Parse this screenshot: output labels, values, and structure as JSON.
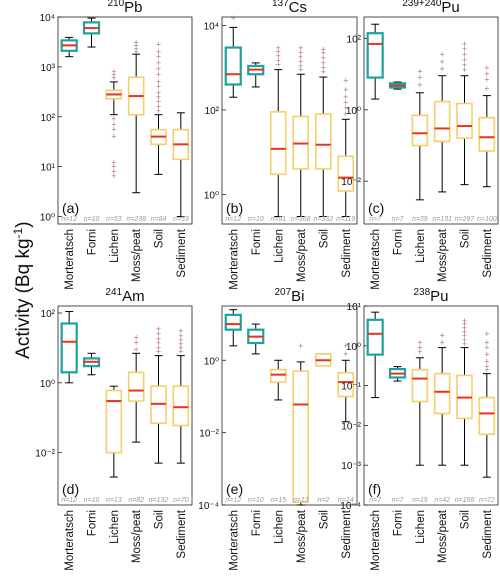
{
  "figure": {
    "ylabel": "Activity (Bq kg",
    "ylabel_sup": "-1",
    "ylabel_tail": ")"
  },
  "colors": {
    "teal": "#1aa3a0",
    "yellow": "#f5cf6a",
    "median": "#e8341c",
    "outlier": "#b07a78",
    "whisker": "#000000",
    "n_text": "#9a9a9a"
  },
  "chart_data": [
    {
      "type": "box",
      "scale": "log",
      "title_sup": "210",
      "title": "Pb",
      "panel": "(a)",
      "ylim_exp": [
        -0.15,
        4
      ],
      "ticks_exp": [
        0,
        1,
        2,
        3,
        4
      ],
      "categories": [
        "Morteratsch",
        "Forni",
        "Lichen",
        "Moss/peat",
        "Soil",
        "Sediment"
      ],
      "n": [
        "n=12",
        "n=10",
        "n=53",
        "n=238",
        "n=84",
        "n=53"
      ],
      "boxes": [
        {
          "q1": 2100,
          "median": 2700,
          "q3": 3400,
          "lo": 1600,
          "hi": 3900,
          "color": "teal",
          "outliers": []
        },
        {
          "q1": 4700,
          "median": 6000,
          "q3": 7800,
          "lo": 2500,
          "hi": 9500,
          "color": "teal",
          "outliers": []
        },
        {
          "q1": 230,
          "median": 280,
          "q3": 340,
          "lo": 110,
          "hi": 500,
          "color": "yellow",
          "outliers": [
            90,
            70,
            55,
            40,
            12,
            10,
            8,
            6.5,
            600,
            700,
            800
          ]
        },
        {
          "q1": 110,
          "median": 260,
          "q3": 620,
          "lo": 3,
          "hi": 1800,
          "color": "yellow",
          "outliers": [
            2000,
            2300,
            2700,
            3100
          ]
        },
        {
          "q1": 28,
          "median": 40,
          "q3": 55,
          "lo": 7,
          "hi": 110,
          "color": "yellow",
          "outliers": [
            130,
            160,
            200,
            250,
            300,
            400,
            500,
            700,
            900,
            1200,
            1600,
            2000,
            2800
          ]
        },
        {
          "q1": 14,
          "median": 28,
          "q3": 55,
          "lo": 1,
          "hi": 120,
          "color": "yellow",
          "outliers": []
        }
      ]
    },
    {
      "type": "box",
      "scale": "log",
      "title_sup": "137",
      "title": "Cs",
      "panel": "(b)",
      "ylim_exp": [
        -0.7,
        4.2
      ],
      "ticks_exp": [
        0,
        2,
        4
      ],
      "categories": [
        "Morteratsch",
        "Forni",
        "Lichen",
        "Moss/peat",
        "Soil",
        "Sediment"
      ],
      "n": [
        "n=12",
        "n=10",
        "n=91",
        "n=168",
        "n=332",
        "n=119"
      ],
      "boxes": [
        {
          "q1": 400,
          "median": 700,
          "q3": 3000,
          "lo": 200,
          "hi": 9000,
          "color": "teal",
          "outliers": [
            15000
          ]
        },
        {
          "q1": 700,
          "median": 900,
          "q3": 1100,
          "lo": 350,
          "hi": 1300,
          "color": "teal",
          "outliers": []
        },
        {
          "q1": 3,
          "median": 12,
          "q3": 90,
          "lo": 0.3,
          "hi": 900,
          "color": "yellow",
          "outliers": [
            1200,
            1500,
            1900,
            2400,
            2900
          ]
        },
        {
          "q1": 4,
          "median": 16,
          "q3": 70,
          "lo": 0.3,
          "hi": 700,
          "color": "yellow",
          "outliers": [
            900,
            1100,
            1400,
            1800,
            2300,
            2900
          ]
        },
        {
          "q1": 4,
          "median": 15,
          "q3": 80,
          "lo": 0.3,
          "hi": 600,
          "color": "yellow",
          "outliers": [
            800,
            1000,
            1300,
            1700,
            2200,
            2700
          ]
        },
        {
          "q1": 1.2,
          "median": 2.5,
          "q3": 8,
          "lo": 0.3,
          "hi": 60,
          "color": "yellow",
          "outliers": [
            80,
            110,
            150,
            200,
            300,
            500
          ]
        }
      ]
    },
    {
      "type": "box",
      "scale": "log",
      "title_sup": "239+240",
      "title": "Pu",
      "panel": "(c)",
      "ylim_exp": [
        -3.2,
        2.6
      ],
      "ticks_exp": [
        -2,
        0,
        2
      ],
      "categories": [
        "Morteratsch",
        "Forni",
        "Lichen",
        "Moss/peat",
        "Soil",
        "Sediment"
      ],
      "n": [
        "n=7",
        "n=7",
        "n=39",
        "n=131",
        "n=297",
        "n=100"
      ],
      "boxes": [
        {
          "q1": 8,
          "median": 70,
          "q3": 140,
          "lo": 2,
          "hi": 250,
          "color": "teal",
          "outliers": []
        },
        {
          "q1": 4.2,
          "median": 4.8,
          "q3": 5.5,
          "lo": 3.8,
          "hi": 6,
          "color": "teal",
          "outliers": []
        },
        {
          "q1": 0.1,
          "median": 0.22,
          "q3": 0.7,
          "lo": 0.003,
          "hi": 3,
          "color": "yellow",
          "outliers": [
            5,
            8,
            12
          ]
        },
        {
          "q1": 0.13,
          "median": 0.3,
          "q3": 1.7,
          "lo": 0.005,
          "hi": 9,
          "color": "yellow",
          "outliers": [
            14,
            22,
            35
          ]
        },
        {
          "q1": 0.16,
          "median": 0.35,
          "q3": 1.5,
          "lo": 0.008,
          "hi": 9,
          "color": "yellow",
          "outliers": [
            13,
            18,
            25,
            35,
            50,
            70
          ]
        },
        {
          "q1": 0.07,
          "median": 0.17,
          "q3": 0.6,
          "lo": 0.007,
          "hi": 2.5,
          "color": "yellow",
          "outliers": [
            4,
            7,
            10,
            15
          ]
        }
      ]
    },
    {
      "type": "box",
      "scale": "log",
      "title_sup": "241",
      "title": "Am",
      "panel": "(d)",
      "ylim_exp": [
        -3.5,
        2.2
      ],
      "ticks_exp": [
        -2,
        0,
        2
      ],
      "categories": [
        "Morteratsch",
        "Forni",
        "Lichen",
        "Moss/peat",
        "Soil",
        "Sediment"
      ],
      "n": [
        "n=12",
        "n=10",
        "n=13",
        "n=82",
        "n=132",
        "n=70"
      ],
      "boxes": [
        {
          "q1": 2,
          "median": 15,
          "q3": 50,
          "lo": 1,
          "hi": 110,
          "color": "teal",
          "outliers": []
        },
        {
          "q1": 3,
          "median": 4,
          "q3": 5,
          "lo": 1.7,
          "hi": 7,
          "color": "teal",
          "outliers": []
        },
        {
          "q1": 0.01,
          "median": 0.3,
          "q3": 0.6,
          "lo": 0.002,
          "hi": 0.8,
          "color": "yellow",
          "outliers": []
        },
        {
          "q1": 0.3,
          "median": 0.6,
          "q3": 2,
          "lo": 0.02,
          "hi": 7,
          "color": "yellow",
          "outliers": [
            9,
            14,
            20
          ]
        },
        {
          "q1": 0.07,
          "median": 0.25,
          "q3": 0.8,
          "lo": 0.005,
          "hi": 6,
          "color": "yellow",
          "outliers": [
            8,
            10,
            14,
            18,
            25,
            35
          ]
        },
        {
          "q1": 0.06,
          "median": 0.2,
          "q3": 0.8,
          "lo": 0.005,
          "hi": 6,
          "color": "yellow",
          "outliers": [
            8,
            10,
            13,
            17,
            22,
            30
          ]
        }
      ]
    },
    {
      "type": "box",
      "scale": "log",
      "title_sup": "207",
      "title": "Bi",
      "panel": "(e)",
      "ylim_exp": [
        -4,
        1.5
      ],
      "ticks_exp": [
        -4,
        -2,
        0
      ],
      "categories": [
        "Morteratsch",
        "Forni",
        "Lichen",
        "Moss/peat",
        "Soil",
        "Sediment"
      ],
      "n": [
        "n=12",
        "n=10",
        "n=15",
        "n=13",
        "n=2",
        "n=14"
      ],
      "boxes": [
        {
          "q1": 7,
          "median": 10,
          "q3": 18,
          "lo": 2.5,
          "hi": 25,
          "color": "teal",
          "outliers": []
        },
        {
          "q1": 3,
          "median": 4.5,
          "q3": 7,
          "lo": 1.5,
          "hi": 10,
          "color": "teal",
          "outliers": []
        },
        {
          "q1": 0.25,
          "median": 0.4,
          "q3": 0.55,
          "lo": 0.08,
          "hi": 1,
          "color": "yellow",
          "outliers": []
        },
        {
          "q1": 0.00012,
          "median": 0.06,
          "q3": 0.5,
          "lo": 0.0001,
          "hi": 0.9,
          "color": "yellow",
          "outliers": [
            2.5
          ]
        },
        {
          "q1": 0.7,
          "median": 1,
          "q3": 1.5,
          "lo": 0.7,
          "hi": 1.5,
          "color": "yellow",
          "outliers": []
        },
        {
          "q1": 0.1,
          "median": 0.25,
          "q3": 0.45,
          "lo": 0.02,
          "hi": 1,
          "color": "yellow",
          "outliers": [
            1.5,
            2.5
          ]
        }
      ]
    },
    {
      "type": "box",
      "scale": "log",
      "title_sup": "238",
      "title": "Pu",
      "panel": "(f)",
      "ylim_exp": [
        -4,
        1
      ],
      "ticks_exp": [
        -4,
        -3,
        -2,
        -1,
        0,
        1
      ],
      "categories": [
        "Morteratsch",
        "Forni",
        "Lichen",
        "Moss/peat",
        "Soil",
        "Sediment"
      ],
      "n": [
        "n=7",
        "n=7",
        "n=15",
        "n=42",
        "n=156",
        "n=72"
      ],
      "boxes": [
        {
          "q1": 0.6,
          "median": 2,
          "q3": 4.5,
          "lo": 0.05,
          "hi": 7,
          "color": "teal",
          "outliers": []
        },
        {
          "q1": 0.16,
          "median": 0.2,
          "q3": 0.26,
          "lo": 0.13,
          "hi": 0.3,
          "color": "teal",
          "outliers": []
        },
        {
          "q1": 0.04,
          "median": 0.15,
          "q3": 0.25,
          "lo": 0.001,
          "hi": 0.5,
          "color": "yellow",
          "outliers": [
            0.7,
            0.9,
            1.2
          ]
        },
        {
          "q1": 0.02,
          "median": 0.07,
          "q3": 0.2,
          "lo": 0.001,
          "hi": 0.9,
          "color": "yellow",
          "outliers": [
            1.2,
            1.8
          ]
        },
        {
          "q1": 0.015,
          "median": 0.05,
          "q3": 0.18,
          "lo": 0.001,
          "hi": 0.9,
          "color": "yellow",
          "outliers": [
            1.1,
            1.4,
            1.8,
            2.2,
            2.8,
            3.5,
            4.2
          ]
        },
        {
          "q1": 0.006,
          "median": 0.02,
          "q3": 0.05,
          "lo": 0.0005,
          "hi": 0.2,
          "color": "yellow",
          "outliers": [
            0.25,
            0.3,
            0.4,
            0.6,
            0.9,
            1.2,
            2
          ]
        }
      ]
    }
  ]
}
